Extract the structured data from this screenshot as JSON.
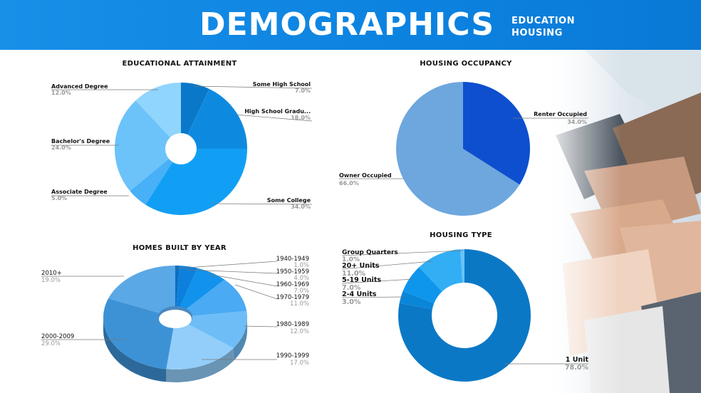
{
  "header": {
    "title": "DEMOGRAPHICS",
    "sub1": "EDUCATION",
    "sub2": "HOUSING"
  },
  "colors": {
    "header_blue": "#1089e4"
  },
  "chart_data": [
    {
      "type": "pie",
      "title": "EDUCATIONAL ATTAINMENT",
      "labels": [
        "Some High School",
        "High School Gradu...",
        "Some College",
        "Associate Degree",
        "Bachelor's Degree",
        "Advanced Degree"
      ],
      "values": [
        7.0,
        18.0,
        34.0,
        5.0,
        24.0,
        12.0
      ],
      "value_labels": [
        "7.0%",
        "18.0%",
        "34.0%",
        "5.0%",
        "24.0%",
        "12.0%"
      ],
      "colors": [
        "#0a78c8",
        "#0d8ae0",
        "#119ff5",
        "#48b0f7",
        "#6cc3fa",
        "#8fd5fc"
      ]
    },
    {
      "type": "pie",
      "title": "HOUSING OCCUPANCY",
      "labels": [
        "Renter Occupied",
        "Owner Occupied"
      ],
      "values": [
        34.0,
        66.0
      ],
      "value_labels": [
        "34.0%",
        "66.0%"
      ],
      "colors": [
        "#0e4fcf",
        "#6da7de"
      ]
    },
    {
      "type": "pie",
      "title": "HOMES BUILT BY YEAR",
      "labels": [
        "1940-1949",
        "1950-1959",
        "1960-1969",
        "1970-1979",
        "1980-1989",
        "1990-1999",
        "2000-2009",
        "2010+"
      ],
      "values": [
        1.0,
        4.0,
        7.0,
        11.0,
        12.0,
        17.0,
        29.0,
        19.0
      ],
      "value_labels": [
        "1.0%",
        "4.0%",
        "7.0%",
        "11.0%",
        "12.0%",
        "17.0%",
        "29.0%",
        "19.0%"
      ],
      "colors": [
        "#0a6fc0",
        "#0c80dc",
        "#1192ec",
        "#4aaaf3",
        "#6fbdf7",
        "#92cef9",
        "#3d92d6",
        "#5aa8e6"
      ]
    },
    {
      "type": "pie",
      "title": "HOUSING TYPE",
      "labels": [
        "1 Unit",
        "2-4 Units",
        "5-19 Units",
        "20+ Units",
        "Group Quarters"
      ],
      "values": [
        78.0,
        3.0,
        7.0,
        11.0,
        1.0
      ],
      "value_labels": [
        "78.0%",
        "3.0%",
        "7.0%",
        "11.0%",
        "1.0%"
      ],
      "colors": [
        "#0b78c6",
        "#0a86d8",
        "#0d96ec",
        "#32aef5",
        "#68c2f8"
      ]
    }
  ]
}
